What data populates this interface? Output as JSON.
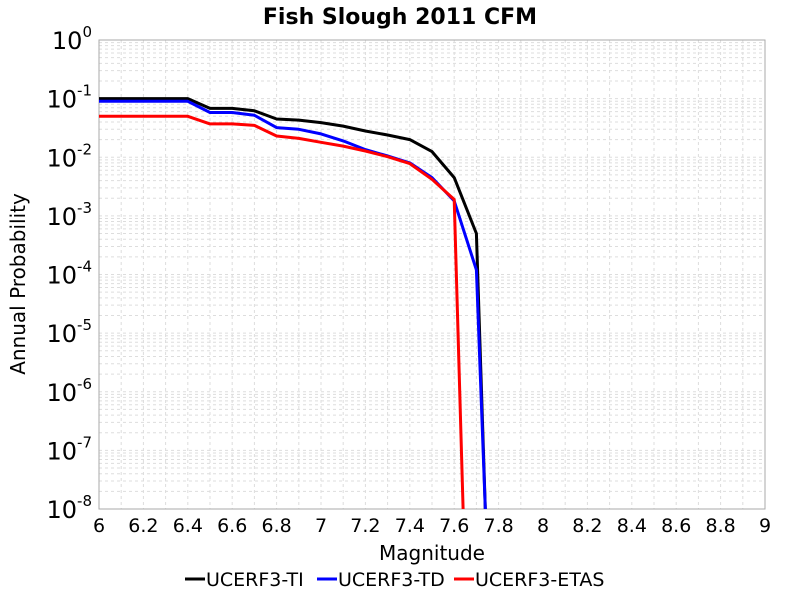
{
  "chart_data": {
    "type": "line",
    "title": "Fish Slough 2011 CFM",
    "xlabel": "Magnitude",
    "ylabel": "Annual Probability",
    "xlim": [
      6,
      9
    ],
    "ylim": [
      1e-08,
      1
    ],
    "yscale": "log",
    "grid": true,
    "legend_position": "bottom",
    "x_ticks": [
      "6",
      "6.2",
      "6.4",
      "6.6",
      "6.8",
      "7",
      "7.2",
      "7.4",
      "7.6",
      "7.8",
      "8",
      "8.2",
      "8.4",
      "8.6",
      "8.8",
      "9"
    ],
    "y_tick_exponents": [
      "0",
      "-1",
      "-2",
      "-3",
      "-4",
      "-5",
      "-6",
      "-7",
      "-8"
    ],
    "y_tick_base": "10",
    "series": [
      {
        "name": "UCERF3-TI",
        "color": "#000000",
        "x": [
          6.0,
          6.1,
          6.2,
          6.3,
          6.4,
          6.5,
          6.6,
          6.7,
          6.8,
          6.9,
          7.0,
          7.1,
          7.2,
          7.3,
          7.4,
          7.5,
          7.6,
          7.7,
          7.74
        ],
        "y": [
          0.1,
          0.1,
          0.1,
          0.1,
          0.1,
          0.068,
          0.068,
          0.062,
          0.045,
          0.043,
          0.039,
          0.034,
          0.028,
          0.024,
          0.02,
          0.0125,
          0.0045,
          0.0005,
          1e-08
        ]
      },
      {
        "name": "UCERF3-TD",
        "color": "#0000ff",
        "x": [
          6.0,
          6.1,
          6.2,
          6.3,
          6.4,
          6.5,
          6.6,
          6.7,
          6.8,
          6.9,
          7.0,
          7.1,
          7.2,
          7.3,
          7.4,
          7.5,
          7.6,
          7.7,
          7.74
        ],
        "y": [
          0.09,
          0.09,
          0.09,
          0.09,
          0.09,
          0.058,
          0.058,
          0.052,
          0.032,
          0.03,
          0.025,
          0.019,
          0.0135,
          0.0105,
          0.008,
          0.0045,
          0.0018,
          0.00012,
          1e-08
        ]
      },
      {
        "name": "UCERF3-ETAS",
        "color": "#ff0000",
        "x": [
          6.0,
          6.1,
          6.2,
          6.3,
          6.4,
          6.5,
          6.6,
          6.7,
          6.8,
          6.9,
          7.0,
          7.1,
          7.2,
          7.3,
          7.4,
          7.5,
          7.6,
          7.64
        ],
        "y": [
          0.05,
          0.05,
          0.05,
          0.05,
          0.05,
          0.037,
          0.037,
          0.035,
          0.023,
          0.021,
          0.018,
          0.0155,
          0.0128,
          0.0102,
          0.0078,
          0.0042,
          0.0019,
          1e-08
        ]
      }
    ]
  }
}
